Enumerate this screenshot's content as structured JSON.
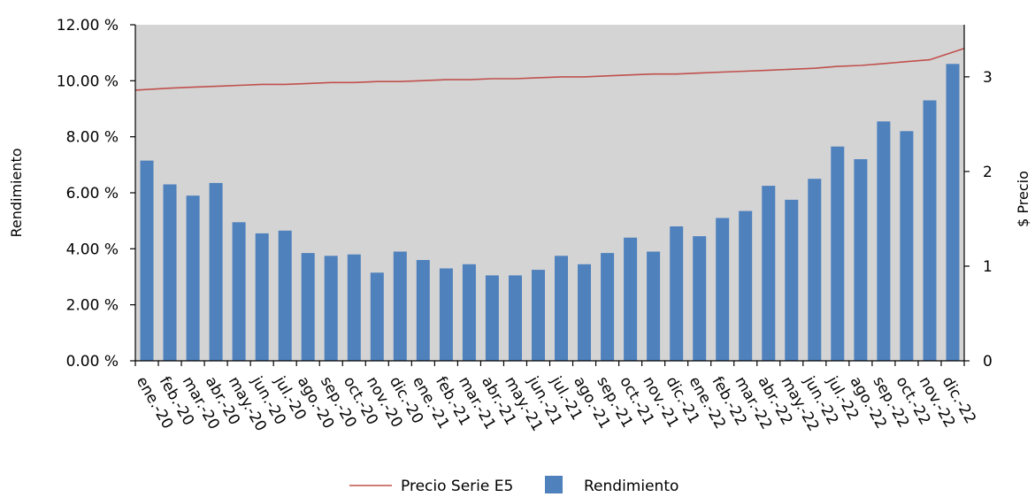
{
  "chart_data": {
    "type": "bar",
    "categories": [
      "ene.-20",
      "feb.-20",
      "mar.-20",
      "abr.-20",
      "may.-20",
      "jun.-20",
      "jul.-20",
      "ago.-20",
      "sep.-20",
      "oct.-20",
      "nov.-20",
      "dic.-20",
      "ene.-21",
      "feb.-21",
      "mar.-21",
      "abr.-21",
      "may.-21",
      "jun.-21",
      "jul.-21",
      "ago.-21",
      "sep.-21",
      "oct.-21",
      "nov.-21",
      "dic.-21",
      "ene.-22",
      "feb.-22",
      "mar.-22",
      "abr.-22",
      "may.-22",
      "jun.-22",
      "jul.-22",
      "ago.-22",
      "sep.-22",
      "oct.-22",
      "nov.-22",
      "dic.-22"
    ],
    "series": [
      {
        "name": "Rendimiento",
        "kind": "bar",
        "axis": "left",
        "color": "#4f81bd",
        "values": [
          7.15,
          6.3,
          5.9,
          6.35,
          4.95,
          4.55,
          4.65,
          3.85,
          3.75,
          3.8,
          3.15,
          3.9,
          3.6,
          3.3,
          3.45,
          3.05,
          3.05,
          3.25,
          3.75,
          3.45,
          3.85,
          4.4,
          3.9,
          4.8,
          4.45,
          5.1,
          5.35,
          6.25,
          5.75,
          6.5,
          7.65,
          7.2,
          8.55,
          8.2,
          9.3,
          10.6
        ]
      },
      {
        "name": "Precio Serie E5",
        "kind": "line",
        "axis": "right",
        "color": "#c0504d",
        "values": [
          2.86,
          2.88,
          2.89,
          2.9,
          2.91,
          2.92,
          2.92,
          2.93,
          2.94,
          2.94,
          2.95,
          2.95,
          2.96,
          2.97,
          2.97,
          2.98,
          2.98,
          2.99,
          3.0,
          3.0,
          3.01,
          3.02,
          3.03,
          3.03,
          3.04,
          3.05,
          3.06,
          3.07,
          3.08,
          3.09,
          3.11,
          3.12,
          3.14,
          3.16,
          3.18,
          3.3
        ]
      }
    ],
    "ylabel": "Rendimiento",
    "ylabel_right": "$ Precio",
    "ylim": [
      0,
      12
    ],
    "ylim_right": [
      0,
      3.55
    ],
    "yticks": [
      "0.00 %",
      "2.00 %",
      "4.00 %",
      "6.00 %",
      "8.00 %",
      "10.00 %",
      "12.00 %"
    ],
    "yticks_right": [
      "0",
      "1",
      "2",
      "3"
    ],
    "plot_background": "#d4d4d4",
    "grid": false,
    "legend_position": "bottom",
    "legend": [
      "Precio Serie E5",
      "Rendimiento"
    ]
  }
}
